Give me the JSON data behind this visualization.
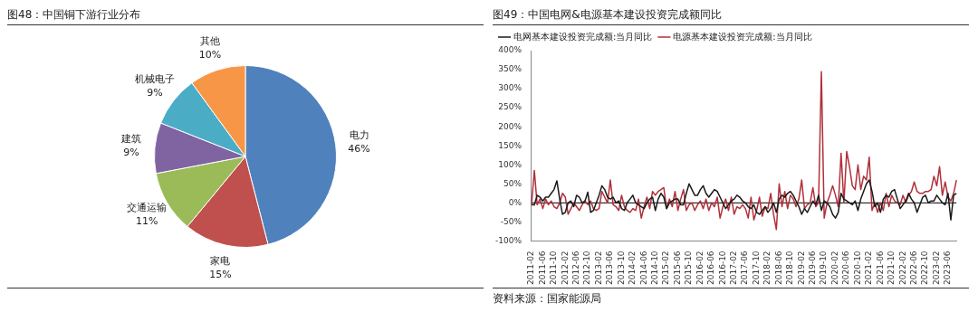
{
  "chart_data": [
    {
      "type": "pie",
      "title": "图48：中国铜下游行业分布",
      "categories": [
        "电力",
        "家电",
        "交通运输",
        "建筑",
        "机械电子",
        "其他"
      ],
      "values": [
        46,
        15,
        11,
        9,
        9,
        10
      ],
      "colors": [
        "#4f81bd",
        "#c0504d",
        "#9bbb59",
        "#8064a2",
        "#4bacc6",
        "#f79646"
      ],
      "value_labels": [
        "46%",
        "15%",
        "11%",
        "9%",
        "9%",
        "10%"
      ],
      "legend": false
    },
    {
      "type": "line",
      "title": "图49：中国电网&电源基本建设投资完成额同比",
      "annotations": [
        "资料来源：国家能源局"
      ],
      "legend": "top left",
      "grid": false,
      "marker": "none",
      "ylim": [
        -100,
        400
      ],
      "yticks": [
        {
          "value": -100,
          "label": "-100%"
        },
        {
          "value": -50,
          "label": "-50%"
        },
        {
          "value": 0,
          "label": "0%"
        },
        {
          "value": 50,
          "label": "50%"
        },
        {
          "value": 100,
          "label": "100%"
        },
        {
          "value": 150,
          "label": "150%"
        },
        {
          "value": 200,
          "label": "200%"
        },
        {
          "value": 250,
          "label": "250%"
        },
        {
          "value": 300,
          "label": "300%"
        },
        {
          "value": 350,
          "label": "350%"
        },
        {
          "value": 400,
          "label": "400%"
        }
      ],
      "ref_lines": [
        {
          "axis": "y",
          "value": 0,
          "color": "#000000"
        }
      ],
      "categories": [
        "2011-02",
        null,
        null,
        null,
        "2011-06",
        null,
        null,
        null,
        "2011-10",
        null,
        null,
        null,
        "2012-02",
        null,
        null,
        null,
        "2012-06",
        null,
        null,
        null,
        "2012-10",
        null,
        null,
        null,
        "2013-02",
        null,
        null,
        null,
        "2013-06",
        null,
        null,
        null,
        "2013-10",
        null,
        null,
        null,
        "2014-02",
        null,
        null,
        null,
        "2014-06",
        null,
        null,
        null,
        "2014-10",
        null,
        null,
        null,
        "2015-02",
        null,
        null,
        null,
        "2015-06",
        null,
        null,
        null,
        "2015-10",
        null,
        null,
        null,
        "2016-02",
        null,
        null,
        null,
        "2016-06",
        null,
        null,
        null,
        "2016-10",
        null,
        null,
        null,
        "2017-02",
        null,
        null,
        null,
        "2017-06",
        null,
        null,
        null,
        "2017-10",
        null,
        null,
        null,
        "2018-02",
        null,
        null,
        null,
        "2018-06",
        null,
        null,
        null,
        "2018-10",
        null,
        null,
        null,
        "2019-02",
        null,
        null,
        null,
        "2019-06",
        null,
        null,
        null,
        "2019-10",
        null,
        null,
        null,
        "2020-02",
        null,
        null,
        null,
        "2020-06",
        null,
        null,
        null,
        "2020-10",
        null,
        null,
        null,
        "2021-02",
        null,
        null,
        null,
        "2021-06",
        null,
        null,
        null,
        "2021-10",
        null,
        null,
        null,
        "2022-02",
        null,
        null,
        null,
        "2022-06",
        null,
        null,
        null,
        "2022-10",
        null,
        null,
        null,
        "2023-02",
        null,
        null,
        null,
        "2023-06",
        null,
        null,
        null
      ],
      "series": [
        {
          "name": "电网基本建设投资完成额:当月同比",
          "color": "#1a1a1a",
          "values": [
            -5,
            -5,
            20,
            15,
            5,
            15,
            15,
            25,
            35,
            58,
            10,
            -30,
            -25,
            0,
            5,
            -10,
            20,
            15,
            0,
            5,
            28,
            -25,
            -20,
            0,
            20,
            45,
            35,
            15,
            10,
            15,
            0,
            5,
            -15,
            -20,
            0,
            10,
            20,
            0,
            -5,
            -10,
            -15,
            0,
            10,
            15,
            -20,
            10,
            25,
            15,
            -15,
            0,
            5,
            10,
            10,
            -5,
            -5,
            25,
            50,
            35,
            20,
            20,
            35,
            45,
            25,
            15,
            25,
            35,
            30,
            15,
            0,
            -15,
            -5,
            5,
            10,
            20,
            15,
            5,
            0,
            -10,
            -15,
            -5,
            -25,
            -30,
            -20,
            -10,
            -25,
            -15,
            0,
            -25,
            10,
            20,
            15,
            25,
            30,
            20,
            5,
            -10,
            -30,
            -15,
            -25,
            -10,
            5,
            -5,
            20,
            -20,
            5,
            0,
            -10,
            -30,
            -40,
            -25,
            25,
            10,
            5,
            0,
            -5,
            5,
            -20,
            10,
            30,
            50,
            60,
            30,
            -10,
            0,
            -25,
            10,
            20,
            15,
            30,
            35,
            10,
            -15,
            -5,
            5,
            25,
            10,
            0,
            -25,
            -5,
            15,
            20,
            0,
            5,
            5,
            20,
            10,
            0,
            -5,
            25,
            -45,
            20,
            25
          ]
        },
        {
          "name": "电源基本建设投资完成额:当月同比",
          "color": "#b0303a",
          "values": [
            -5,
            85,
            -5,
            10,
            -15,
            10,
            -5,
            5,
            -10,
            -15,
            0,
            25,
            15,
            -30,
            -15,
            0,
            -10,
            -20,
            -5,
            5,
            -5,
            5,
            -15,
            -20,
            -15,
            30,
            15,
            0,
            60,
            -5,
            -10,
            -20,
            20,
            -10,
            -20,
            -25,
            -15,
            -20,
            10,
            -40,
            -10,
            15,
            -15,
            30,
            20,
            30,
            35,
            40,
            -15,
            10,
            -10,
            30,
            -20,
            10,
            35,
            -20,
            -5,
            0,
            -20,
            -5,
            5,
            -15,
            10,
            -20,
            0,
            -10,
            15,
            -40,
            -10,
            10,
            -20,
            15,
            -30,
            -10,
            -15,
            -5,
            -15,
            -40,
            15,
            -45,
            -20,
            15,
            -35,
            -10,
            -15,
            25,
            -30,
            -70,
            50,
            -10,
            30,
            -15,
            20,
            10,
            -10,
            10,
            60,
            -15,
            -5,
            0,
            40,
            -10,
            0,
            345,
            -40,
            0,
            20,
            45,
            20,
            -10,
            130,
            0,
            135,
            95,
            45,
            35,
            100,
            35,
            70,
            60,
            120,
            -20,
            0,
            -25,
            0,
            -20,
            25,
            -10,
            20,
            5,
            0,
            -5,
            20,
            0,
            20,
            30,
            55,
            30,
            25,
            25,
            30,
            30,
            35,
            70,
            45,
            95,
            20,
            55,
            15,
            5,
            25,
            60
          ]
        }
      ]
    }
  ]
}
